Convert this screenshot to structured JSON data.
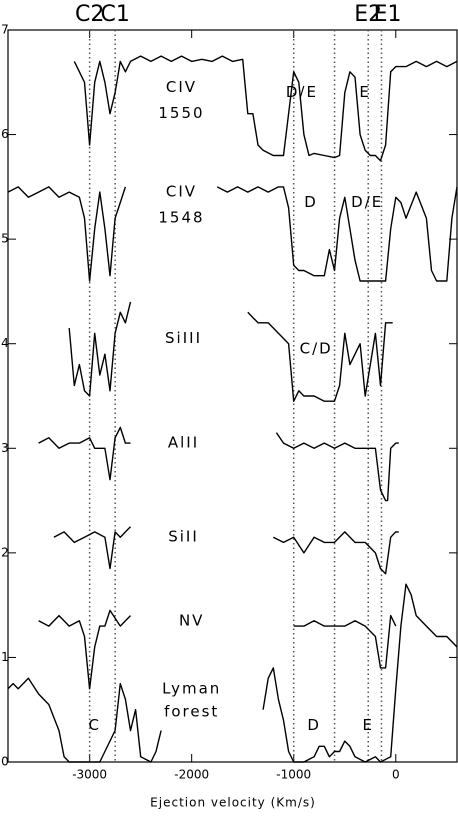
{
  "chart_data": {
    "type": "line",
    "x_label": "Ejection velocity (Km/s)",
    "xlim": [
      -3800,
      600
    ],
    "ylim": [
      0,
      7
    ],
    "xticks": [
      -3000,
      -2000,
      -1000,
      0
    ],
    "yticks": [
      0,
      1,
      2,
      3,
      4,
      5,
      6,
      7
    ],
    "color": "#000000",
    "vlines": [
      -3000,
      -2750,
      -1000,
      -600,
      -270,
      -140
    ],
    "vline_color": "#555555",
    "top_labels": [
      {
        "text": "C2",
        "x": -3000
      },
      {
        "text": "C1",
        "x": -2750
      },
      {
        "text": "E2",
        "x": -270
      },
      {
        "text": "E1",
        "x": -80
      }
    ],
    "annotations": [
      {
        "text": "CIV",
        "x": -2100,
        "y": 6.45
      },
      {
        "text": "1550",
        "x": -2100,
        "y": 6.2
      },
      {
        "text": "D/E",
        "x": -920,
        "y": 6.4
      },
      {
        "text": "E",
        "x": -300,
        "y": 6.4
      },
      {
        "text": "CIV",
        "x": -2100,
        "y": 5.45
      },
      {
        "text": "1548",
        "x": -2100,
        "y": 5.2
      },
      {
        "text": "D",
        "x": -830,
        "y": 5.35
      },
      {
        "text": "D/E",
        "x": -280,
        "y": 5.35
      },
      {
        "text": "SiIII",
        "x": -2080,
        "y": 4.05
      },
      {
        "text": "C/D",
        "x": -780,
        "y": 3.95
      },
      {
        "text": "AlII",
        "x": -2080,
        "y": 3.05
      },
      {
        "text": "SiII",
        "x": -2080,
        "y": 2.15
      },
      {
        "text": "NV",
        "x": -2000,
        "y": 1.35
      },
      {
        "text": "Lyman",
        "x": -2000,
        "y": 0.7
      },
      {
        "text": "forest",
        "x": -2000,
        "y": 0.48
      },
      {
        "text": "C",
        "x": -2950,
        "y": 0.35
      },
      {
        "text": "D",
        "x": -800,
        "y": 0.35
      },
      {
        "text": "E",
        "x": -270,
        "y": 0.35
      }
    ],
    "series": [
      {
        "x": [
          -3150,
          -3100,
          -3050,
          -3000,
          -2950,
          -2900,
          -2850,
          -2800,
          -2750,
          -2700,
          -2650,
          -2600,
          -2500,
          -2400,
          -2300,
          -2200,
          -2100,
          -2000,
          -1900,
          -1800,
          -1700,
          -1600,
          -1500,
          -1450,
          -1400,
          -1350,
          -1300,
          -1200,
          -1100,
          -1050,
          -1000,
          -950,
          -900,
          -850,
          -800,
          -700,
          -600,
          -550,
          -500,
          -450,
          -400,
          -350,
          -300,
          -250,
          -200,
          -150,
          -100,
          -50,
          0,
          100,
          200,
          300,
          400,
          500,
          600
        ],
        "values": [
          6.7,
          6.6,
          6.5,
          5.9,
          6.5,
          6.7,
          6.5,
          6.2,
          6.4,
          6.7,
          6.6,
          6.7,
          6.75,
          6.7,
          6.75,
          6.7,
          6.75,
          6.7,
          6.72,
          6.7,
          6.75,
          6.7,
          6.72,
          6.2,
          6.2,
          5.9,
          5.85,
          5.8,
          5.8,
          6.2,
          6.6,
          6.5,
          6.0,
          5.8,
          5.82,
          5.8,
          5.78,
          5.8,
          6.4,
          6.6,
          6.55,
          6.0,
          5.85,
          5.8,
          5.8,
          5.75,
          5.9,
          6.6,
          6.65,
          6.65,
          6.7,
          6.65,
          6.7,
          6.65,
          6.7
        ]
      },
      {
        "x": [
          -3800,
          -3700,
          -3600,
          -3500,
          -3400,
          -3300,
          -3200,
          -3100,
          -3050,
          -3000,
          -2950,
          -2900,
          -2850,
          -2800,
          -2750,
          -2700,
          -2650,
          -2600,
          -1750,
          -1650,
          -1550,
          -1450,
          -1350,
          -1250,
          -1150,
          -1100,
          -1050,
          -1000,
          -950,
          -900,
          -800,
          -700,
          -650,
          -600,
          -550,
          -500,
          -450,
          -400,
          -350,
          -300,
          -200,
          -100,
          -50,
          0,
          50,
          100,
          200,
          300,
          350,
          400,
          450,
          500,
          550,
          600
        ],
        "values": [
          5.45,
          5.5,
          5.4,
          5.45,
          5.5,
          5.4,
          5.45,
          5.4,
          5.2,
          4.6,
          5.1,
          5.45,
          5.1,
          4.65,
          5.2,
          5.35,
          5.5,
          null,
          5.5,
          5.45,
          5.5,
          5.45,
          5.5,
          5.45,
          5.5,
          5.5,
          5.3,
          4.75,
          4.7,
          4.7,
          4.65,
          4.65,
          4.9,
          4.7,
          5.2,
          5.4,
          5.1,
          4.8,
          4.6,
          4.6,
          4.6,
          4.6,
          5.1,
          5.4,
          5.35,
          5.2,
          5.45,
          5.2,
          4.7,
          4.6,
          4.6,
          4.6,
          5.2,
          5.5
        ]
      },
      {
        "x": [
          -3200,
          -3150,
          -3100,
          -3050,
          -3000,
          -2950,
          -2900,
          -2850,
          -2800,
          -2750,
          -2700,
          -2650,
          -2600,
          -2000,
          -1450,
          -1350,
          -1250,
          -1150,
          -1050,
          -1000,
          -950,
          -900,
          -800,
          -700,
          -600,
          -550,
          -500,
          -450,
          -350,
          -300,
          -250,
          -200,
          -150,
          -100,
          -50,
          -30
        ],
        "values": [
          4.15,
          3.6,
          3.8,
          3.55,
          3.5,
          4.1,
          3.7,
          3.9,
          3.55,
          4.1,
          4.3,
          4.2,
          4.4,
          null,
          4.3,
          4.2,
          4.2,
          4.1,
          4.0,
          3.45,
          3.55,
          3.5,
          3.5,
          3.45,
          3.45,
          3.6,
          4.1,
          3.8,
          4.0,
          3.5,
          3.8,
          4.1,
          3.6,
          4.2,
          4.2,
          4.2
        ]
      },
      {
        "x": [
          -3500,
          -3400,
          -3300,
          -3200,
          -3100,
          -3000,
          -2950,
          -2850,
          -2800,
          -2750,
          -2700,
          -2650,
          -2600,
          -2000,
          -1170,
          -1100,
          -1000,
          -900,
          -800,
          -700,
          -600,
          -500,
          -400,
          -300,
          -200,
          -150,
          -100,
          -80,
          -50,
          0,
          30
        ],
        "values": [
          3.05,
          3.1,
          3.0,
          3.05,
          3.05,
          3.1,
          3.0,
          3.0,
          2.7,
          3.1,
          3.2,
          3.05,
          3.05,
          null,
          3.15,
          3.05,
          3.0,
          3.05,
          3.0,
          3.05,
          3.0,
          3.05,
          3.0,
          3.0,
          3.0,
          2.6,
          2.5,
          2.5,
          3.0,
          3.05,
          3.05
        ]
      },
      {
        "x": [
          -3350,
          -3250,
          -3150,
          -3050,
          -2950,
          -2850,
          -2800,
          -2750,
          -2700,
          -2600,
          -2000,
          -1200,
          -1100,
          -1000,
          -900,
          -800,
          -700,
          -600,
          -500,
          -400,
          -300,
          -200,
          -150,
          -100,
          -50,
          0,
          30
        ],
        "values": [
          2.15,
          2.2,
          2.1,
          2.15,
          2.2,
          2.15,
          1.85,
          2.2,
          2.15,
          2.25,
          null,
          2.15,
          2.1,
          2.15,
          2.0,
          2.15,
          2.1,
          2.1,
          2.2,
          2.1,
          2.1,
          2.0,
          1.85,
          1.8,
          2.15,
          2.2,
          2.2
        ]
      },
      {
        "x": [
          -3500,
          -3400,
          -3300,
          -3200,
          -3100,
          -3050,
          -3000,
          -2950,
          -2900,
          -2850,
          -2800,
          -2700,
          -2600,
          -2000,
          -1000,
          -900,
          -800,
          -700,
          -600,
          -500,
          -400,
          -300,
          -200,
          -150,
          -100,
          -50,
          0
        ],
        "values": [
          1.35,
          1.3,
          1.4,
          1.3,
          1.35,
          1.2,
          0.7,
          1.1,
          1.3,
          1.3,
          1.45,
          1.3,
          1.4,
          null,
          1.3,
          1.3,
          1.35,
          1.3,
          1.3,
          1.3,
          1.35,
          1.3,
          1.2,
          0.9,
          0.9,
          1.4,
          1.3
        ]
      },
      {
        "x": [
          -3800,
          -3750,
          -3700,
          -3600,
          -3500,
          -3400,
          -3300,
          -3250,
          -3200,
          -3000,
          -2900,
          -2850,
          -2750,
          -2700,
          -2650,
          -2600,
          -2550,
          -2500,
          -2400,
          -2350,
          -2300,
          -1800,
          -1300,
          -1250,
          -1200,
          -1150,
          -1100,
          -1050,
          -1000,
          -900,
          -800,
          -750,
          -700,
          -650,
          -600,
          -550,
          -500,
          -450,
          -400,
          -300,
          -200,
          -150,
          -50,
          0,
          50,
          100,
          150,
          200,
          300,
          400,
          500,
          600
        ],
        "values": [
          0.7,
          0.75,
          0.7,
          0.8,
          0.65,
          0.55,
          0.3,
          0.05,
          0,
          0,
          0,
          0.1,
          0.3,
          0.75,
          0.6,
          0.3,
          0.5,
          0.05,
          0,
          0.1,
          0.3,
          null,
          0.5,
          0.8,
          0.9,
          0.6,
          0.4,
          0.1,
          0,
          0,
          0.05,
          0.15,
          0.15,
          0.05,
          0.1,
          0.1,
          0.2,
          0.15,
          0.05,
          0,
          0.05,
          0,
          0.05,
          0.7,
          1.3,
          1.7,
          1.6,
          1.4,
          1.3,
          1.2,
          1.2,
          1.1
        ]
      }
    ]
  }
}
